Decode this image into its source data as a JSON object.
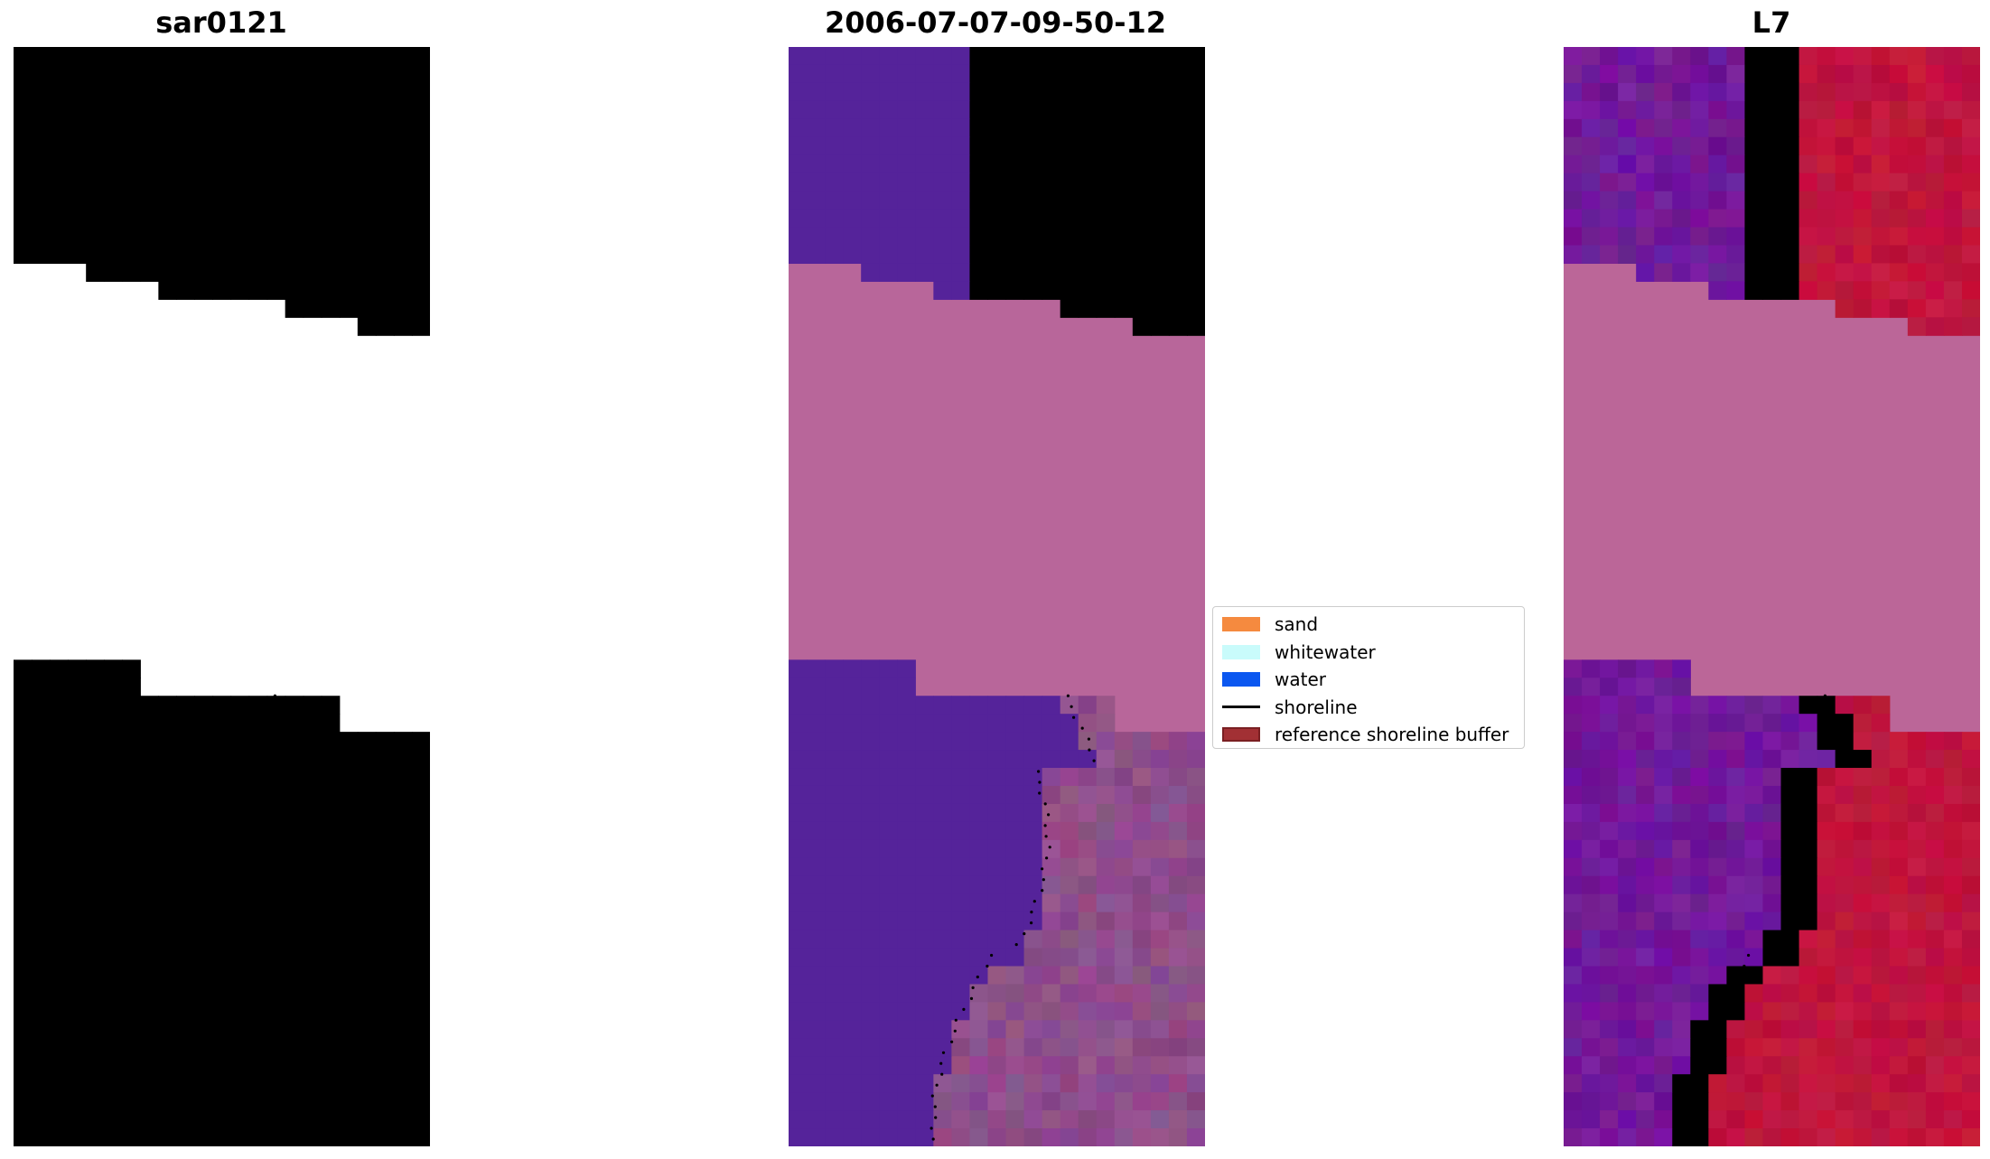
{
  "panels": [
    {
      "title": "sar0121",
      "colors": {
        "a": "#6699d4",
        "b": "#9fc4dc",
        "c": "#e8f5fb",
        "d": "#7fa8da"
      }
    },
    {
      "title": "2006-07-07-09-50-12",
      "colors": {
        "water": "#55239a",
        "land": "#8f4e8a",
        "mask": "#bb6698",
        "pink": "#b8669a"
      }
    },
    {
      "title": "L7",
      "colors": {
        "water": "#72199a",
        "red": "#c0153d",
        "mask": "#bb6698"
      }
    }
  ],
  "legend": {
    "items": [
      {
        "label": "sand",
        "color": "#f58a3f",
        "kind": "patch"
      },
      {
        "label": "whitewater",
        "color": "#c9fbfb",
        "kind": "patch"
      },
      {
        "label": "water",
        "color": "#0b57f0",
        "kind": "patch"
      },
      {
        "label": "shoreline",
        "color": "#000000",
        "kind": "line"
      },
      {
        "label": "reference shoreline buffer",
        "color": "#a23034",
        "kind": "patch",
        "edge": "#7a1f22"
      }
    ]
  }
}
